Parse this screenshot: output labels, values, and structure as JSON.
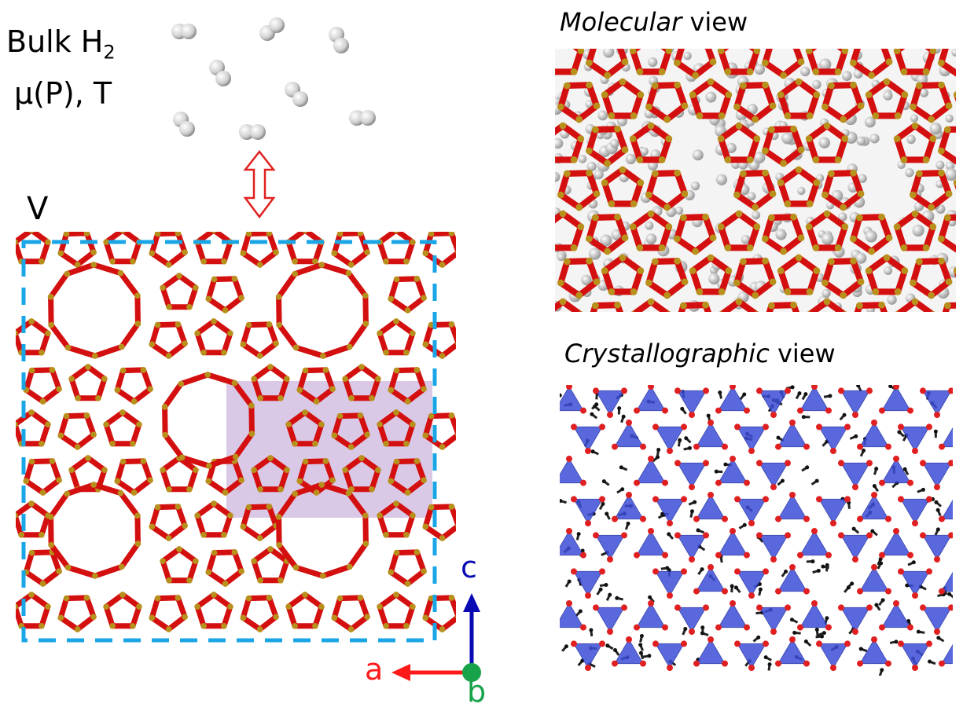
{
  "bulk": {
    "line1": "Bulk H",
    "line1_sub": "2",
    "line2": "μ(P), T"
  },
  "volume_label": "V",
  "molecular": {
    "italic": "Molecular",
    "rest": " view"
  },
  "crystallographic": {
    "italic": "Crystallographic",
    "rest": " view"
  },
  "axes": {
    "c": "c",
    "a": "a",
    "b": "b"
  },
  "colors": {
    "oxygen": "#d40f0f",
    "silicon": "#b8901c",
    "box": "#1aa6e6",
    "highlight": "#c9b2db",
    "arrow": "#e02020",
    "axis_a": "#ff1a1a",
    "axis_c": "#0a0ab4",
    "axis_b": "#18a34a",
    "tetra": "#3d4fd8",
    "hydrogen": "#d9d9d9"
  }
}
